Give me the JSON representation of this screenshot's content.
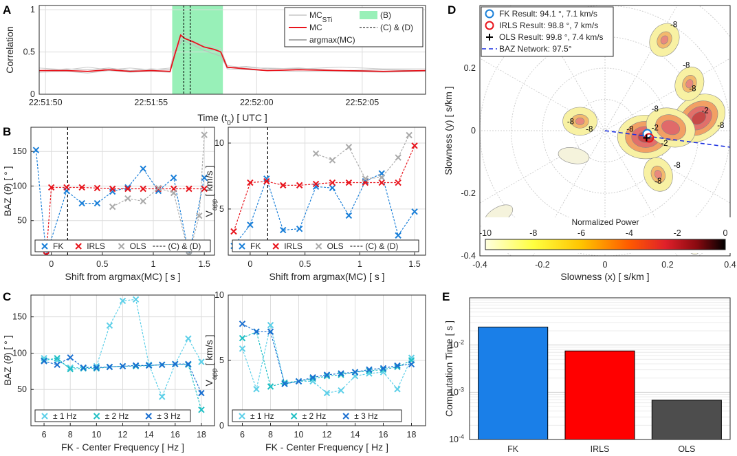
{
  "panel_labels": [
    "A",
    "B",
    "C",
    "D",
    "E"
  ],
  "chart_data": [
    {
      "id": "A",
      "type": "line",
      "xlabel": "Time (t",
      "xlabel_sub": "0",
      "xlabel_tail": ") [ UTC ]",
      "ylabel": "Correlation",
      "xlim": [
        49.7,
        68.0
      ],
      "ylim": [
        0,
        1.05
      ],
      "xticks": [
        50,
        55,
        60,
        65
      ],
      "xticklabels": [
        "22:51:50",
        "22:51:55",
        "22:52:00",
        "22:52:05"
      ],
      "yticks": [
        0,
        0.5,
        1
      ],
      "yticklabels": [
        "0",
        "0.5",
        "1"
      ],
      "shaded_window": [
        56.0,
        58.4
      ],
      "vlines": [
        56.55,
        56.85
      ],
      "series": [
        {
          "name": "MC",
          "sub": "STi",
          "color": "#bbbbbb",
          "x": [
            49.7,
            51,
            52,
            53,
            54,
            55,
            55.9,
            56.1,
            56.5,
            57,
            57.5,
            58.3,
            58.6,
            59.5,
            60.5,
            62,
            64,
            66,
            68
          ],
          "y": [
            0.28,
            0.3,
            0.29,
            0.31,
            0.28,
            0.3,
            0.29,
            0.5,
            0.64,
            0.58,
            0.52,
            0.45,
            0.31,
            0.33,
            0.3,
            0.31,
            0.28,
            0.29,
            0.28
          ]
        },
        {
          "name": "MC",
          "sub": "STi",
          "color": "#c4c4c4",
          "x": [
            49.7,
            51,
            52,
            53,
            54,
            55,
            55.9,
            56.1,
            56.5,
            57,
            57.5,
            58.3,
            58.6,
            59.5,
            60.5,
            62,
            64,
            66,
            68
          ],
          "y": [
            0.26,
            0.27,
            0.25,
            0.28,
            0.26,
            0.27,
            0.26,
            0.48,
            0.68,
            0.6,
            0.55,
            0.5,
            0.3,
            0.29,
            0.28,
            0.27,
            0.27,
            0.26,
            0.27
          ]
        },
        {
          "name": "MC",
          "sub": "STi",
          "color": "#cccccc",
          "x": [
            49.7,
            51,
            52,
            53,
            54,
            55,
            55.9,
            56.1,
            56.5,
            57,
            57.5,
            58.3,
            58.6,
            59.5,
            60.5,
            62,
            64,
            66,
            68
          ],
          "y": [
            0.31,
            0.29,
            0.32,
            0.29,
            0.31,
            0.29,
            0.31,
            0.52,
            0.72,
            0.62,
            0.6,
            0.54,
            0.34,
            0.31,
            0.31,
            0.3,
            0.32,
            0.3,
            0.3
          ]
        },
        {
          "name": "MC",
          "sub": "",
          "color": "#e8141c",
          "x": [
            49.7,
            51,
            52,
            53,
            54,
            55,
            55.9,
            56.1,
            56.4,
            56.6,
            57,
            57.5,
            58,
            58.3,
            58.6,
            59.5,
            60.5,
            62,
            64,
            66,
            68
          ],
          "y": [
            0.28,
            0.28,
            0.27,
            0.29,
            0.27,
            0.28,
            0.27,
            0.45,
            0.7,
            0.66,
            0.62,
            0.56,
            0.53,
            0.5,
            0.32,
            0.3,
            0.28,
            0.29,
            0.28,
            0.27,
            0.28
          ]
        }
      ],
      "legend": [
        {
          "label": "MC",
          "sub": "STi",
          "kind": "line",
          "color": "#bbbbbb"
        },
        {
          "label": "(B)",
          "sub": "",
          "kind": "patch",
          "color": "#98f0b8"
        },
        {
          "label": "MC",
          "sub": "",
          "kind": "line",
          "color": "#e8141c"
        },
        {
          "label": "(C) & (D)",
          "sub": "",
          "kind": "dash",
          "color": "#000000"
        },
        {
          "label": "argmax(MC)",
          "sub": "",
          "kind": "line",
          "color": "#777777"
        }
      ]
    },
    {
      "id": "B-left",
      "type": "line",
      "xlabel": "Shift from argmax(MC) [ s ]",
      "ylabel": "BAZ (",
      "ylabel_sym": "θ",
      "ylabel_tail": ") [ ° ]",
      "xlim": [
        -0.2,
        1.6
      ],
      "ylim": [
        0,
        185
      ],
      "xticks": [
        0,
        0.5,
        1,
        1.5
      ],
      "xticklabels": [
        "0",
        "0.5",
        "1",
        "1.5"
      ],
      "yticks": [
        50,
        100,
        150
      ],
      "yticklabels": [
        "50",
        "100",
        "150"
      ],
      "vline": 0.16,
      "series": [
        {
          "name": "FK",
          "color": "#1a7fd8",
          "x": [
            -0.15,
            -0.05,
            0.15,
            0.3,
            0.45,
            0.6,
            0.75,
            0.9,
            1.05,
            1.2,
            1.35,
            1.5
          ],
          "y": [
            152,
            0,
            93,
            75,
            75,
            92,
            98,
            125,
            93,
            112,
            0,
            112
          ]
        },
        {
          "name": "IRLS",
          "color": "#e8141c",
          "x": [
            -0.05,
            0.0,
            0.15,
            0.3,
            0.45,
            0.6,
            0.75,
            0.9,
            1.05,
            1.2,
            1.35,
            1.5
          ],
          "y": [
            0,
            98,
            98,
            98,
            97,
            96,
            96,
            96,
            96,
            96,
            96,
            96
          ]
        },
        {
          "name": "OLS",
          "color": "#aaaaaa",
          "x": [
            0.6,
            0.75,
            0.9,
            1.05,
            1.2,
            1.35,
            1.45,
            1.5
          ],
          "y": [
            70,
            82,
            78,
            97,
            90,
            0,
            57,
            174
          ]
        }
      ],
      "legend": [
        {
          "label": "FK",
          "kind": "x",
          "color": "#1a7fd8"
        },
        {
          "label": "IRLS",
          "kind": "x",
          "color": "#e8141c"
        },
        {
          "label": "OLS",
          "kind": "x",
          "color": "#aaaaaa"
        },
        {
          "label": "(C) & (D)",
          "kind": "dash",
          "color": "#000000"
        }
      ]
    },
    {
      "id": "B-right",
      "type": "line",
      "xlabel": "Shift from argmax(MC) [ s ]",
      "ylabel": "V",
      "ylabel_sub": "app",
      "ylabel_tail": " [ km/s ]",
      "xlim": [
        -0.2,
        1.6
      ],
      "ylim": [
        1.5,
        11.2
      ],
      "xticks": [
        0,
        0.5,
        1,
        1.5
      ],
      "xticklabels": [
        "0",
        "0.5",
        "1",
        "1.5"
      ],
      "yticks": [
        5,
        10
      ],
      "yticklabels": [
        "5",
        "10"
      ],
      "vline": 0.16,
      "series": [
        {
          "name": "FK",
          "color": "#1a7fd8",
          "x": [
            -0.15,
            0.0,
            0.15,
            0.3,
            0.45,
            0.6,
            0.75,
            0.9,
            1.05,
            1.2,
            1.35,
            1.5
          ],
          "y": [
            2.2,
            3.8,
            7.3,
            3.4,
            3.5,
            6.7,
            6.6,
            4.5,
            7.1,
            7.7,
            3.0,
            4.8
          ]
        },
        {
          "name": "IRLS",
          "color": "#e8141c",
          "x": [
            -0.15,
            0.0,
            0.15,
            0.3,
            0.45,
            0.6,
            0.75,
            0.9,
            1.05,
            1.2,
            1.35,
            1.5
          ],
          "y": [
            3.3,
            7.0,
            7.1,
            6.8,
            6.8,
            6.9,
            7.0,
            7.0,
            7.0,
            7.0,
            7.0,
            9.8
          ]
        },
        {
          "name": "OLS",
          "color": "#aaaaaa",
          "x": [
            0.6,
            0.75,
            0.9,
            1.05,
            1.2,
            1.35,
            1.45
          ],
          "y": [
            9.2,
            8.7,
            9.7,
            7.3,
            7.4,
            8.9,
            10.6
          ]
        }
      ],
      "legend": [
        {
          "label": "FK",
          "kind": "x",
          "color": "#1a7fd8"
        },
        {
          "label": "IRLS",
          "kind": "x",
          "color": "#e8141c"
        },
        {
          "label": "OLS",
          "kind": "x",
          "color": "#aaaaaa"
        },
        {
          "label": "(C) & (D)",
          "kind": "dash",
          "color": "#000000"
        }
      ]
    },
    {
      "id": "C-left",
      "type": "line",
      "xlabel": "FK - Center Frequency [ Hz ]",
      "ylabel": "BAZ (",
      "ylabel_sym": "θ",
      "ylabel_tail": ") [ ° ]",
      "xlim": [
        5,
        19
      ],
      "ylim": [
        0,
        180
      ],
      "xticks": [
        6,
        8,
        10,
        12,
        14,
        16,
        18
      ],
      "xticklabels": [
        "6",
        "8",
        "10",
        "12",
        "14",
        "16",
        "18"
      ],
      "yticks": [
        50,
        100,
        150
      ],
      "yticklabels": [
        "50",
        "100",
        "150"
      ],
      "series": [
        {
          "name": "± 1 Hz",
          "color": "#5ccfe8",
          "x": [
            6,
            7,
            8,
            9,
            10,
            11,
            12,
            13,
            14,
            15,
            16,
            17,
            18
          ],
          "y": [
            93,
            90,
            80,
            80,
            82,
            138,
            172,
            174,
            84,
            40,
            85,
            120,
            88
          ]
        },
        {
          "name": "± 2 Hz",
          "color": "#1fbfc4",
          "x": [
            6,
            7,
            8,
            9,
            10,
            11,
            12,
            13,
            14,
            15,
            16,
            17,
            18
          ],
          "y": [
            90,
            93,
            78,
            79,
            79,
            81,
            82,
            82,
            83,
            84,
            85,
            84,
            22
          ]
        },
        {
          "name": "± 3 Hz",
          "color": "#1a6fd0",
          "x": [
            6,
            7,
            8,
            9,
            10,
            11,
            12,
            13,
            14,
            15,
            16,
            17,
            18
          ],
          "y": [
            89,
            84,
            94,
            80,
            80,
            81,
            82,
            83,
            83,
            84,
            85,
            85,
            45
          ]
        }
      ],
      "legend": [
        {
          "label": "± 1 Hz",
          "kind": "x",
          "color": "#5ccfe8"
        },
        {
          "label": "± 2 Hz",
          "kind": "x",
          "color": "#1fbfc4"
        },
        {
          "label": "± 3 Hz",
          "kind": "x",
          "color": "#1a6fd0"
        }
      ]
    },
    {
      "id": "C-right",
      "type": "line",
      "xlabel": "FK - Center Frequency [ Hz ]",
      "ylabel": "V",
      "ylabel_sub": "app",
      "ylabel_tail": " [ km/s ]",
      "xlim": [
        5,
        19
      ],
      "ylim": [
        0,
        10
      ],
      "xticks": [
        6,
        8,
        10,
        12,
        14,
        16,
        18
      ],
      "xticklabels": [
        "6",
        "8",
        "10",
        "12",
        "14",
        "16",
        "18"
      ],
      "yticks": [
        0,
        5,
        10
      ],
      "yticklabels": [
        "0",
        "5",
        "10"
      ],
      "series": [
        {
          "name": "± 1 Hz",
          "color": "#5ccfe8",
          "x": [
            6,
            7,
            8,
            9,
            10,
            11,
            12,
            13,
            14,
            15,
            16,
            17,
            18
          ],
          "y": [
            5.9,
            2.8,
            7.7,
            3.2,
            3.4,
            3.4,
            2.5,
            2.7,
            3.8,
            4.0,
            4.1,
            2.8,
            5.2
          ]
        },
        {
          "name": "± 2 Hz",
          "color": "#1fbfc4",
          "x": [
            6,
            7,
            8,
            9,
            10,
            11,
            12,
            13,
            14,
            15,
            16,
            17,
            18
          ],
          "y": [
            6.7,
            7.2,
            3.0,
            3.3,
            3.4,
            3.6,
            3.8,
            3.9,
            4.1,
            4.2,
            4.3,
            4.5,
            5.0
          ]
        },
        {
          "name": "± 3 Hz",
          "color": "#1a6fd0",
          "x": [
            6,
            7,
            8,
            9,
            10,
            11,
            12,
            13,
            14,
            15,
            16,
            17,
            18
          ],
          "y": [
            7.8,
            7.2,
            7.2,
            3.2,
            3.4,
            3.7,
            3.9,
            4.0,
            4.1,
            4.3,
            4.4,
            4.6,
            4.7
          ]
        }
      ],
      "legend": [
        {
          "label": "± 1 Hz",
          "kind": "x",
          "color": "#5ccfe8"
        },
        {
          "label": "± 2 Hz",
          "kind": "x",
          "color": "#1fbfc4"
        },
        {
          "label": "± 3 Hz",
          "kind": "x",
          "color": "#1a6fd0"
        }
      ]
    },
    {
      "id": "D",
      "type": "heatmap",
      "xlabel": "Slowness (x) [ s/km ]",
      "ylabel": "Slowness (y) [ s/km ]",
      "xlim": [
        -0.4,
        0.4
      ],
      "ylim": [
        -0.4,
        0.4
      ],
      "xticks": [
        -0.4,
        -0.2,
        0,
        0.2,
        0.4
      ],
      "xticklabels": [
        "-0.4",
        "-0.2",
        "0",
        "0.2",
        "0.4"
      ],
      "yticks": [
        -0.4,
        -0.2,
        0,
        0.2
      ],
      "yticklabels": [
        "-0.4",
        "-0.2",
        "0",
        "0.2"
      ],
      "colorbar": {
        "label": "Normalized Power",
        "range": [
          -10,
          0
        ],
        "ticks": [
          -10,
          -8,
          -6,
          -4,
          -2,
          0
        ],
        "ticklabels": [
          "-10",
          "-8",
          "-6",
          "-4",
          "-2",
          "0"
        ]
      },
      "blobs": [
        {
          "x": 0.13,
          "y": -0.02,
          "level": "high"
        },
        {
          "x": 0.3,
          "y": 0.04,
          "level": "high"
        },
        {
          "x": 0.21,
          "y": 0.01,
          "level": "mid"
        },
        {
          "x": 0.27,
          "y": 0.15,
          "level": "low"
        },
        {
          "x": 0.19,
          "y": 0.29,
          "level": "low"
        },
        {
          "x": 0.17,
          "y": -0.14,
          "level": "low"
        },
        {
          "x": -0.08,
          "y": 0.03,
          "level": "low"
        },
        {
          "x": -0.34,
          "y": -0.27,
          "level": "faint"
        },
        {
          "x": 0.27,
          "y": -0.35,
          "level": "faint"
        },
        {
          "x": -0.1,
          "y": -0.08,
          "level": "faint"
        }
      ],
      "contour_labels": [
        {
          "text": "-8",
          "x": 0.22,
          "y": 0.34
        },
        {
          "text": "-8",
          "x": 0.26,
          "y": 0.21
        },
        {
          "text": "-8",
          "x": 0.28,
          "y": 0.135
        },
        {
          "text": "-2",
          "x": 0.32,
          "y": 0.065
        },
        {
          "text": "-8",
          "x": 0.37,
          "y": 0.018
        },
        {
          "text": "-8",
          "x": 0.16,
          "y": 0.07
        },
        {
          "text": "-2",
          "x": 0.16,
          "y": 0.01
        },
        {
          "text": "-2",
          "x": 0.19,
          "y": -0.04
        },
        {
          "text": "-8",
          "x": 0.08,
          "y": 0.005
        },
        {
          "text": "-8",
          "x": 0.23,
          "y": -0.11
        },
        {
          "text": "-8",
          "x": 0.17,
          "y": -0.16
        },
        {
          "text": "-8",
          "x": -0.11,
          "y": 0.03
        },
        {
          "text": "-8",
          "x": -0.05,
          "y": 0.005
        }
      ],
      "results": [
        {
          "name": "FK Result",
          "label": "FK Result: 94.1 °, 7.1 km/s",
          "x": 0.135,
          "y": -0.01,
          "color": "#1a7fd8"
        },
        {
          "name": "IRLS Result",
          "label": "IRLS Result: 98.8 °, 7 km/s",
          "x": 0.141,
          "y": -0.023,
          "color": "#e8141c"
        },
        {
          "name": "OLS Result",
          "label": "OLS Result: 99.8 °, 7.4 km/s",
          "x": 0.133,
          "y": -0.023,
          "color": "#000000"
        },
        {
          "name": "BAZ Network",
          "label": "BAZ Network: 97.5°",
          "baz": 97.5,
          "color": "#1a2fe0"
        }
      ]
    },
    {
      "id": "E",
      "type": "bar",
      "yscale": "log",
      "ylabel": "Computation Time [ s ]",
      "xlabel": "",
      "categories": [
        "FK",
        "IRLS",
        "OLS"
      ],
      "values": [
        0.024,
        0.0075,
        0.00068
      ],
      "colors": [
        "#1a7fe8",
        "#ff0000",
        "#4d4d4d"
      ],
      "ylim": [
        0.0001,
        0.1
      ],
      "ytick_exps": [
        "-4",
        "-3",
        "-2"
      ]
    }
  ]
}
